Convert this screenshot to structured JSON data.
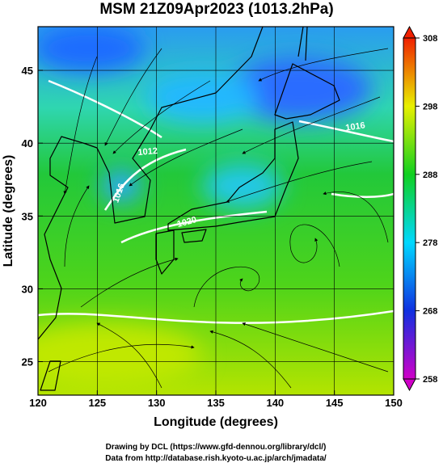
{
  "map": {
    "title": "MSM 21Z09Apr2023 (1013.2hPa)",
    "xlabel": "Longitude (degrees)",
    "ylabel": "Latitude  (degrees)",
    "xlim": [
      120,
      150
    ],
    "xticks": [
      120,
      125,
      130,
      135,
      140,
      145,
      150
    ],
    "ylim": [
      22.7,
      48
    ],
    "yticks": [
      25,
      30,
      35,
      40,
      45
    ],
    "grid": true,
    "colorbar": {
      "lim": [
        258,
        308
      ],
      "ticks": [
        258,
        268,
        278,
        288,
        298,
        308
      ]
    },
    "contour_labels": [
      "1016",
      "1012",
      "1016",
      "1020"
    ]
  },
  "footer": [
    "Drawing by DCL (https://www.gfd-dennou.org/library/dcl/)",
    "Data from http://database.rish.kyoto-u.ac.jp/arch/jmadata/"
  ]
}
